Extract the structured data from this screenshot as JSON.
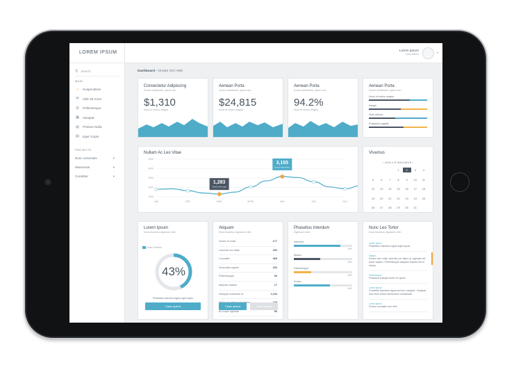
{
  "brand": "LOREM IPSUM",
  "search": {
    "placeholder": "Search"
  },
  "sidebar": {
    "section_main": "MAIN",
    "items": [
      {
        "label": "Suspendisse",
        "icon": "home-icon"
      },
      {
        "label": "Velit Sit Amet",
        "icon": "wrench-icon"
      },
      {
        "label": "Pellentesque",
        "icon": "gear-icon"
      },
      {
        "label": "Volutpat",
        "icon": "grid-icon"
      },
      {
        "label": "Pretium Nulla",
        "icon": "document-icon"
      },
      {
        "label": "Eget Turpis",
        "icon": "document-icon"
      }
    ],
    "section_projects": "PROJECTS",
    "projects": [
      {
        "label": "Nunc venenatis"
      },
      {
        "label": "Maecenas"
      },
      {
        "label": "Curabitur"
      }
    ]
  },
  "user": {
    "name": "Lorem Ipsum",
    "role": "User Admin"
  },
  "breadcrumb": {
    "root": "Dashboard",
    "sep": "›",
    "current": "Ornare Orci Velit"
  },
  "stats": [
    {
      "title": "Consectetur Adipiscing",
      "subtitle": "Donec sollicitudin, ipsum non",
      "value": "$1,310",
      "caption": "Nunc id metus magna",
      "color": "#4eacc9"
    },
    {
      "title": "Aenean Porta",
      "subtitle": "Donec sollicitudin, ipsum non",
      "value": "$24,815",
      "caption": "Nunc id metus magna",
      "color": "#4eacc9"
    },
    {
      "title": "Aenean Porta",
      "subtitle": "Donec sollicitudin, ipsum non",
      "value": "94.2%",
      "caption": "Nunc id metus magna",
      "color": "#4eacc9"
    }
  ],
  "progress_card": {
    "title": "Aenean Porta",
    "subtitle": "Donec sollicitudin, ipsum non",
    "bars": [
      {
        "label": "Nunc id metus magna",
        "fraction": 0.7,
        "secondary": 0.3
      },
      {
        "label": "Integer",
        "fraction": 0.55,
        "secondary": 0.45
      },
      {
        "label": "Nam ultrices",
        "fraction": 0.45,
        "secondary": 0.55
      },
      {
        "label": "Phasellus sagittis",
        "fraction": 0.6,
        "secondary": 0.4
      }
    ]
  },
  "line_chart": {
    "title": "Nullam Ac Leo Vitae",
    "callouts": [
      {
        "value": "1,283",
        "caption": "Donec id leo eget"
      },
      {
        "value": "3,155",
        "caption": "tempor elementum"
      }
    ]
  },
  "chart_data": {
    "type": "line",
    "title": "Nullam Ac Leo Vitae",
    "categories": [
      "JAN",
      "FEB",
      "MAR",
      "APRIL",
      "MAY",
      "JUN",
      "JULY"
    ],
    "y_ticks": [
      1000,
      2000,
      3000,
      4000,
      5000
    ],
    "ylim": [
      1000,
      5000
    ],
    "x": [
      0,
      0.5,
      1,
      1.5,
      2,
      2.5,
      3,
      3.5,
      4,
      4.5,
      5,
      5.5,
      6,
      6.5
    ],
    "values": [
      1800,
      1850,
      1650,
      1400,
      1283,
      1500,
      2050,
      2700,
      3155,
      3050,
      2600,
      2050,
      1850,
      2200
    ],
    "highlights": [
      {
        "index": 4,
        "value": 1283
      },
      {
        "index": 8,
        "value": 3155
      }
    ],
    "grid": true
  },
  "calendar": {
    "title": "Vivamus",
    "month": "MOLLIS MAXIMUS",
    "days": [
      "1",
      "2",
      "3",
      "4",
      "5",
      "6",
      "7",
      "8",
      "9",
      "10",
      "11",
      "12",
      "13",
      "14",
      "15",
      "16",
      "17",
      "18",
      "19",
      "20",
      "21",
      "22",
      "23",
      "24",
      "25",
      "26",
      "27",
      "28",
      "29",
      "30",
      "31"
    ],
    "leading_blank": 3,
    "selected": "2",
    "accent": "#4b5663"
  },
  "donut": {
    "title": "Lorem Ipsum",
    "subtitle": "Nunc faucibus dignissim nibh",
    "legend": "Lorem Pharetra",
    "value": "43%",
    "fraction": 0.43,
    "caption": "Phasellus interdum ligula eget turpis",
    "button": "Class aptent"
  },
  "table_card": {
    "title": "Aliquam",
    "subtitle": "Nunc faucibus dignissim nibh",
    "rows": [
      {
        "label": "Donec et nulla",
        "value": "177"
      },
      {
        "label": "Lobortis non diam",
        "value": "252"
      },
      {
        "label": "Convallis",
        "value": "468"
      },
      {
        "label": "Venenatis sapien",
        "value": "252"
      },
      {
        "label": "Pellentesque",
        "value": "53"
      },
      {
        "label": "Aliquam mauris",
        "value": "17"
      },
      {
        "label": "Volutpat consectur et",
        "value": "1,234"
      },
      {
        "label": "Netus et malesuada fames",
        "value": "105"
      },
      {
        "label": "Ac turpis egestas",
        "value": "96"
      }
    ],
    "button_primary": "Class aptent",
    "button_secondary": "Class aptent"
  },
  "bars_card": {
    "title": "Phasellus Interdum",
    "subtitle": "Dignissim nibh",
    "bars": [
      {
        "label": "Interdum",
        "fraction": 0.8,
        "color": "#4eacc9",
        "value": "45%"
      },
      {
        "label": "Mauris",
        "fraction": 0.45,
        "color": "#4b5663",
        "value": "45%"
      },
      {
        "label": "Pellentesque",
        "fraction": 0.3,
        "color": "#f3b347",
        "value": "45%"
      },
      {
        "label": "Donec",
        "fraction": 0.62,
        "color": "#4eacc9",
        "value": "45%"
      }
    ]
  },
  "feed_card": {
    "title": "Nunc Leo Tortor",
    "subtitle": "Nunc faucibus dignissim nibh",
    "items": [
      {
        "date": "Lorem ipsum",
        "text": "Phasellus interdum ligula eget turpis"
      },
      {
        "date": "Integer",
        "text": "Donec nec nulla, lobortis non diam ut, egestas vel tortor sapien. Pellentesque aliquam mauris est id metus"
      },
      {
        "date": "Pellentesque",
        "text": "Praesent suscipit lorem et quam"
      },
      {
        "date": "Lorem ipsum",
        "text": "Curabitur faucibus ligula sed leo volutpat. Volutpat sed risus lorem elementum sollicitudin."
      },
      {
        "date": "Lorem ipsum",
        "text": "Donec convallis orci nibh"
      }
    ]
  },
  "colors": {
    "accent": "#4eacc9",
    "orange": "#f3a536",
    "dark": "#4b5663"
  }
}
